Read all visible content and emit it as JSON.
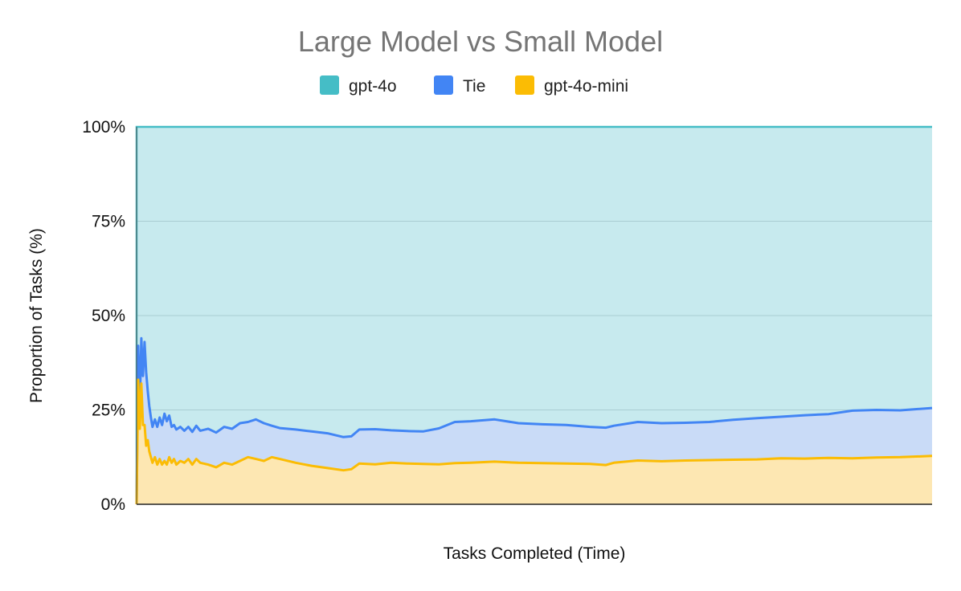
{
  "chart_data": {
    "type": "area",
    "stacked": true,
    "title": "Large Model vs Small Model",
    "xlabel": "Tasks Completed (Time)",
    "ylabel": "Proportion of Tasks (%)",
    "ylim": [
      0,
      100
    ],
    "yticks": [
      {
        "value": 0,
        "label": "0%"
      },
      {
        "value": 25,
        "label": "25%"
      },
      {
        "value": 50,
        "label": "50%"
      },
      {
        "value": 75,
        "label": "75%"
      },
      {
        "value": 100,
        "label": "100%"
      }
    ],
    "xlim": [
      0,
      1
    ],
    "legend_position": "top",
    "colors": {
      "gpt4o_fill": "#c7eaee",
      "gpt4o_line": "#45bdc6",
      "tie_fill": "#c9dbf7",
      "tie_line": "#4285f4",
      "mini_fill": "#fde7b2",
      "mini_line": "#fbbc04",
      "grid": "#a9cdd2",
      "axis": "#222222"
    },
    "series": [
      {
        "name": "gpt-4o-mini",
        "description": "share of tasks where gpt-4o-mini was better (bottom band)",
        "x": [
          0.0,
          0.002,
          0.004,
          0.006,
          0.008,
          0.01,
          0.012,
          0.014,
          0.016,
          0.018,
          0.02,
          0.023,
          0.026,
          0.029,
          0.032,
          0.035,
          0.038,
          0.041,
          0.044,
          0.047,
          0.05,
          0.055,
          0.06,
          0.065,
          0.07,
          0.075,
          0.08,
          0.09,
          0.1,
          0.11,
          0.12,
          0.13,
          0.14,
          0.15,
          0.16,
          0.17,
          0.18,
          0.2,
          0.22,
          0.24,
          0.26,
          0.27,
          0.28,
          0.3,
          0.32,
          0.34,
          0.36,
          0.38,
          0.4,
          0.42,
          0.45,
          0.48,
          0.51,
          0.54,
          0.57,
          0.59,
          0.6,
          0.63,
          0.66,
          0.69,
          0.72,
          0.75,
          0.78,
          0.81,
          0.84,
          0.87,
          0.9,
          0.93,
          0.96,
          1.0
        ],
        "values": [
          0,
          33,
          20,
          32,
          21,
          21,
          15.5,
          17,
          14,
          12.5,
          11,
          12.5,
          10.5,
          12,
          10.5,
          11.5,
          10.5,
          12.5,
          11,
          12,
          10.5,
          11.5,
          11,
          12,
          10.5,
          12,
          11,
          10.5,
          9.8,
          11,
          10.5,
          11.5,
          12.5,
          12,
          11.5,
          12.5,
          12,
          11,
          10.2,
          9.6,
          9.0,
          9.3,
          10.8,
          10.6,
          11.0,
          10.8,
          10.7,
          10.6,
          10.9,
          11.0,
          11.3,
          11.0,
          10.9,
          10.8,
          10.7,
          10.4,
          11.0,
          11.6,
          11.4,
          11.6,
          11.7,
          11.8,
          11.9,
          12.2,
          12.1,
          12.3,
          12.2,
          12.4,
          12.5,
          12.8
        ]
      },
      {
        "name": "Tie",
        "description": "cumulative share for gpt-4o-mini + Tie (top of blue band)",
        "x": [
          0.0,
          0.002,
          0.004,
          0.006,
          0.008,
          0.01,
          0.012,
          0.014,
          0.016,
          0.018,
          0.02,
          0.023,
          0.026,
          0.029,
          0.032,
          0.035,
          0.038,
          0.041,
          0.044,
          0.047,
          0.05,
          0.055,
          0.06,
          0.065,
          0.07,
          0.075,
          0.08,
          0.09,
          0.1,
          0.11,
          0.12,
          0.13,
          0.14,
          0.15,
          0.16,
          0.17,
          0.18,
          0.2,
          0.22,
          0.24,
          0.26,
          0.27,
          0.28,
          0.3,
          0.32,
          0.34,
          0.36,
          0.38,
          0.4,
          0.42,
          0.45,
          0.48,
          0.51,
          0.54,
          0.57,
          0.59,
          0.6,
          0.63,
          0.66,
          0.69,
          0.72,
          0.75,
          0.78,
          0.81,
          0.84,
          0.87,
          0.9,
          0.93,
          0.96,
          1.0
        ],
        "values": [
          0,
          42,
          26,
          44,
          34,
          43,
          35,
          30,
          26,
          23,
          20.5,
          22.5,
          20.5,
          23,
          21,
          24,
          22,
          23.5,
          20.5,
          21,
          19.8,
          20.5,
          19.5,
          20.5,
          19.2,
          20.8,
          19.5,
          20,
          19,
          20.5,
          20,
          21.5,
          21.8,
          22.5,
          21.5,
          20.8,
          20.2,
          19.8,
          19.3,
          18.8,
          17.8,
          18.0,
          19.8,
          19.9,
          19.6,
          19.4,
          19.3,
          20.1,
          21.8,
          22.0,
          22.5,
          21.5,
          21.2,
          21.0,
          20.5,
          20.3,
          20.8,
          21.8,
          21.5,
          21.6,
          21.8,
          22.4,
          22.8,
          23.2,
          23.6,
          23.9,
          24.8,
          25.0,
          24.9,
          25.5
        ]
      },
      {
        "name": "gpt-4o",
        "description": "remaining share up to 100% (top teal band)",
        "top_value": 100
      }
    ]
  }
}
